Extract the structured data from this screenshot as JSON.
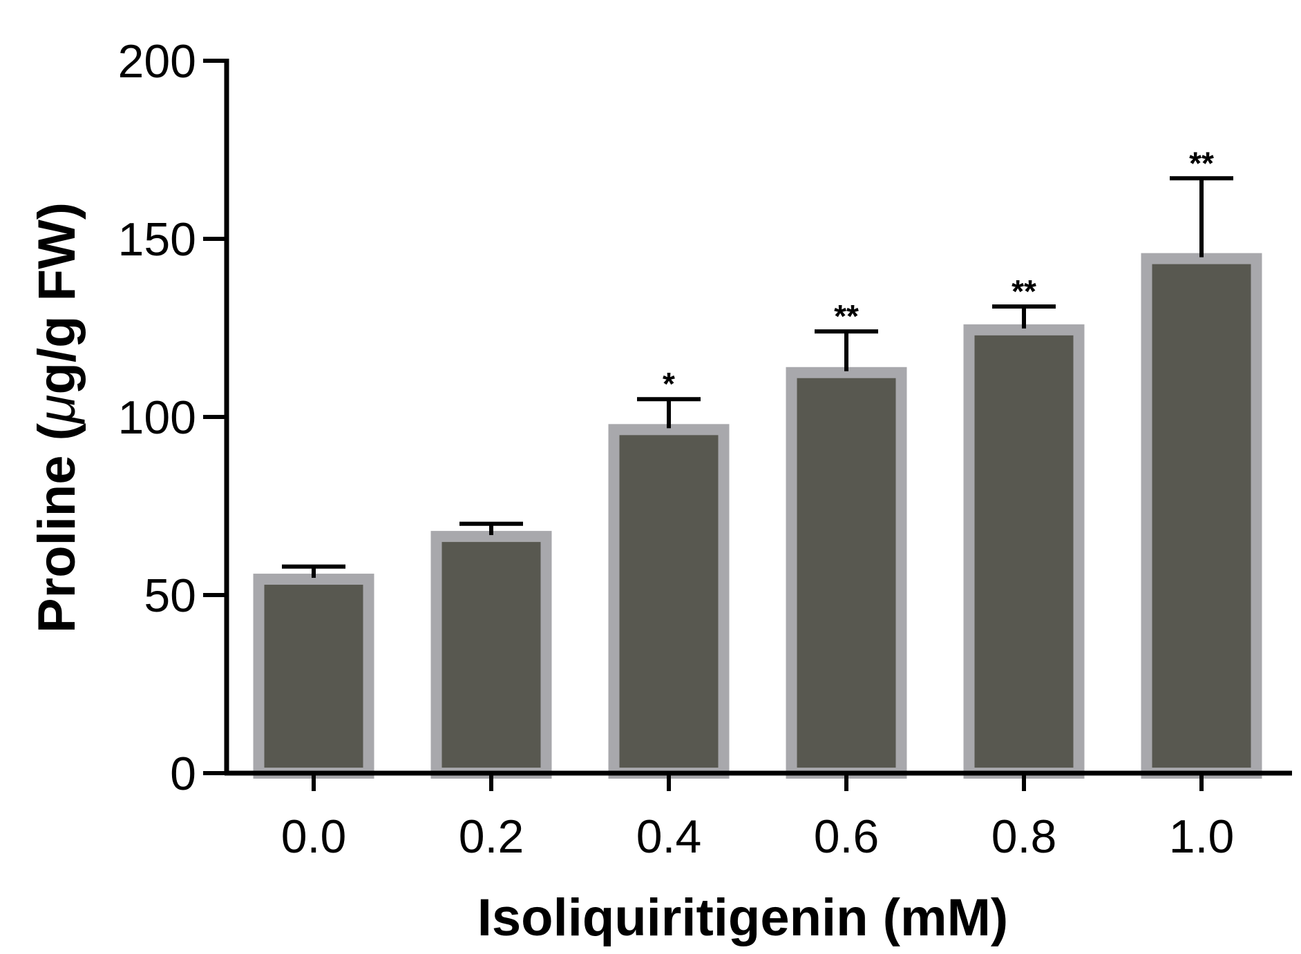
{
  "chart_data": {
    "type": "bar",
    "xlabel": "Isoliquiritigenin (mM)",
    "ylabel_prefix": "Proline (",
    "ylabel_mu": "μ",
    "ylabel_suffix": "g/g FW)",
    "categories": [
      "0.0",
      "0.2",
      "0.4",
      "0.6",
      "0.8",
      "1.0"
    ],
    "values": [
      56,
      68,
      98,
      114,
      126,
      146
    ],
    "error_upper": [
      2,
      2,
      7,
      10,
      5,
      21
    ],
    "significance": [
      "",
      "",
      "*",
      "**",
      "**",
      "**"
    ],
    "ylim": [
      0,
      200
    ],
    "yticks": [
      0,
      50,
      100,
      150,
      200
    ],
    "grid": false,
    "legend": "none",
    "colors": {
      "bar_fill": "#585850",
      "bar_border": "#a8a8ac",
      "axis": "#000000",
      "error_bar": "#000000"
    }
  }
}
